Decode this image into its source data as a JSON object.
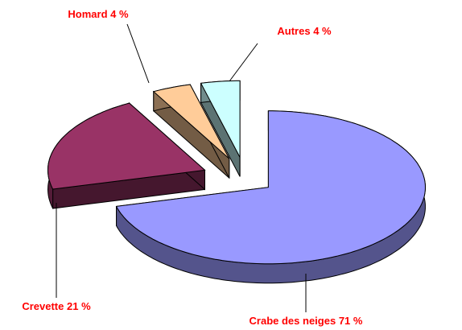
{
  "chart_data": {
    "type": "pie",
    "categories": [
      "Crabe des neiges",
      "Crevette",
      "Homard",
      "Autres"
    ],
    "values": [
      71,
      21,
      4,
      4
    ],
    "value_labels": [
      "71 %",
      "21 %",
      "4 %",
      "4 %"
    ],
    "colors": [
      "#9999ff",
      "#993366",
      "#ffcc99",
      "#ccffff"
    ]
  }
}
